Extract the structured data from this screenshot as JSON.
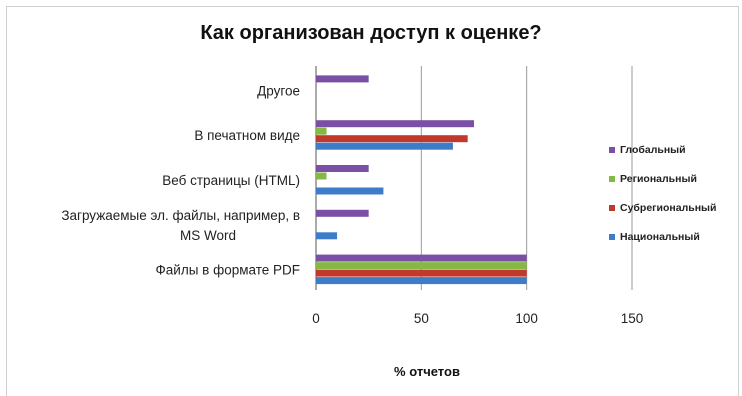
{
  "chart_data": {
    "type": "bar",
    "orientation": "horizontal",
    "title": "Как организован доступ к оценке?",
    "xlabel": "% отчетов",
    "ylabel": "",
    "xlim": [
      0,
      150
    ],
    "xticks": [
      0,
      50,
      100,
      150
    ],
    "grid": true,
    "legend_position": "right",
    "categories": [
      [
        "Другое"
      ],
      [
        "В печатном виде"
      ],
      [
        "Веб страницы (HTML)"
      ],
      [
        "Загружаемые эл. файлы, например, в",
        "MS Word"
      ],
      [
        "Файлы в формате PDF"
      ]
    ],
    "series": [
      {
        "name": "Глобальный",
        "color": "#7a4fa6",
        "values": [
          25,
          75,
          25,
          25,
          100
        ]
      },
      {
        "name": "Региональный",
        "color": "#86b846",
        "values": [
          0,
          5,
          5,
          0,
          100
        ]
      },
      {
        "name": "Субрегиональный",
        "color": "#c0392b",
        "values": [
          0,
          72,
          0,
          0,
          100
        ]
      },
      {
        "name": "Национальный",
        "color": "#3d7cc9",
        "values": [
          0,
          65,
          32,
          10,
          100
        ]
      }
    ]
  }
}
